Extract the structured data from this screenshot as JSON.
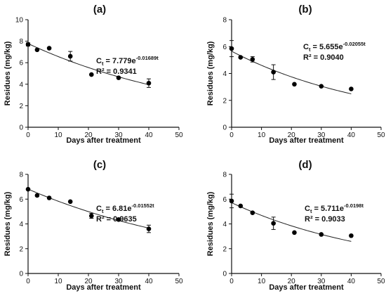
{
  "chart_data": [
    {
      "type": "scatter",
      "title": "(a)",
      "xlabel": "Days after treatment",
      "ylabel": "Residues (mg/kg)",
      "xlim": [
        0,
        50
      ],
      "ylim": [
        0,
        10
      ],
      "xticks": [
        "0",
        "10",
        "20",
        "30",
        "40",
        "50"
      ],
      "yticks": [
        "0",
        "2",
        "4",
        "6",
        "8",
        "10"
      ],
      "x": [
        0,
        3,
        7,
        14,
        21,
        30,
        40
      ],
      "y": [
        7.7,
        7.2,
        7.35,
        6.6,
        4.9,
        4.6,
        4.1
      ],
      "err": [
        0.15,
        0.1,
        0.1,
        0.45,
        0.1,
        0.1,
        0.4
      ],
      "fit": {
        "a": 7.779,
        "k": 0.01689
      },
      "equation": {
        "prefix": "C",
        "sub": "t",
        "middle": " = 7.779e",
        "exponent": "-0.01689t",
        "r2": "R² = 0.9341"
      }
    },
    {
      "type": "scatter",
      "title": "(b)",
      "xlabel": "Days after treatment",
      "ylabel": "Residues (mg/kg)",
      "xlim": [
        0,
        50
      ],
      "ylim": [
        0,
        8
      ],
      "xticks": [
        "0",
        "10",
        "20",
        "30",
        "40",
        "50"
      ],
      "yticks": [
        "0",
        "2",
        "4",
        "6",
        "8"
      ],
      "x": [
        0,
        3,
        7,
        14,
        21,
        30,
        40
      ],
      "y": [
        5.85,
        5.2,
        5.05,
        4.1,
        3.2,
        3.05,
        2.85
      ],
      "err": [
        0.6,
        0.1,
        0.2,
        0.55,
        0.1,
        0.1,
        0.1
      ],
      "fit": {
        "a": 5.655,
        "k": 0.02055
      },
      "equation": {
        "prefix": "C",
        "sub": "t",
        "middle": " = 5.655e",
        "exponent": "-0.02055t",
        "r2": "R² = 0.9040"
      }
    },
    {
      "type": "scatter",
      "title": "(c)",
      "xlabel": "Days after treatment",
      "ylabel": "Residues (mg/kg)",
      "xlim": [
        0,
        50
      ],
      "ylim": [
        0,
        8
      ],
      "xticks": [
        "0",
        "10",
        "20",
        "30",
        "40",
        "50"
      ],
      "yticks": [
        "0",
        "2",
        "4",
        "6",
        "8"
      ],
      "x": [
        0,
        3,
        7,
        14,
        21,
        30,
        40
      ],
      "y": [
        6.8,
        6.3,
        6.1,
        5.8,
        4.65,
        4.35,
        3.6
      ],
      "err": [
        0.1,
        0.1,
        0.1,
        0.1,
        0.2,
        0.1,
        0.3
      ],
      "fit": {
        "a": 6.81,
        "k": 0.01552
      },
      "equation": {
        "prefix": "C",
        "sub": "t",
        "middle": " = 6.81e",
        "exponent": "-0.01552t",
        "r2": "R² = 0.9635"
      }
    },
    {
      "type": "scatter",
      "title": "(d)",
      "xlabel": "Days after treatment",
      "ylabel": "Residues (mg/kg)",
      "xlim": [
        0,
        50
      ],
      "ylim": [
        0,
        8
      ],
      "xticks": [
        "0",
        "10",
        "20",
        "30",
        "40",
        "50"
      ],
      "yticks": [
        "0",
        "2",
        "4",
        "6",
        "8"
      ],
      "x": [
        0,
        3,
        7,
        14,
        21,
        30,
        40
      ],
      "y": [
        5.85,
        5.45,
        4.9,
        4.05,
        3.3,
        3.15,
        3.05
      ],
      "err": [
        0.55,
        0.1,
        0.1,
        0.5,
        0.1,
        0.1,
        0.1
      ],
      "fit": {
        "a": 5.711,
        "k": 0.0198
      },
      "equation": {
        "prefix": "C",
        "sub": "t",
        "middle": " = 5.711e",
        "exponent": "-0.0198t",
        "r2": "R² = 0.9033"
      }
    }
  ]
}
